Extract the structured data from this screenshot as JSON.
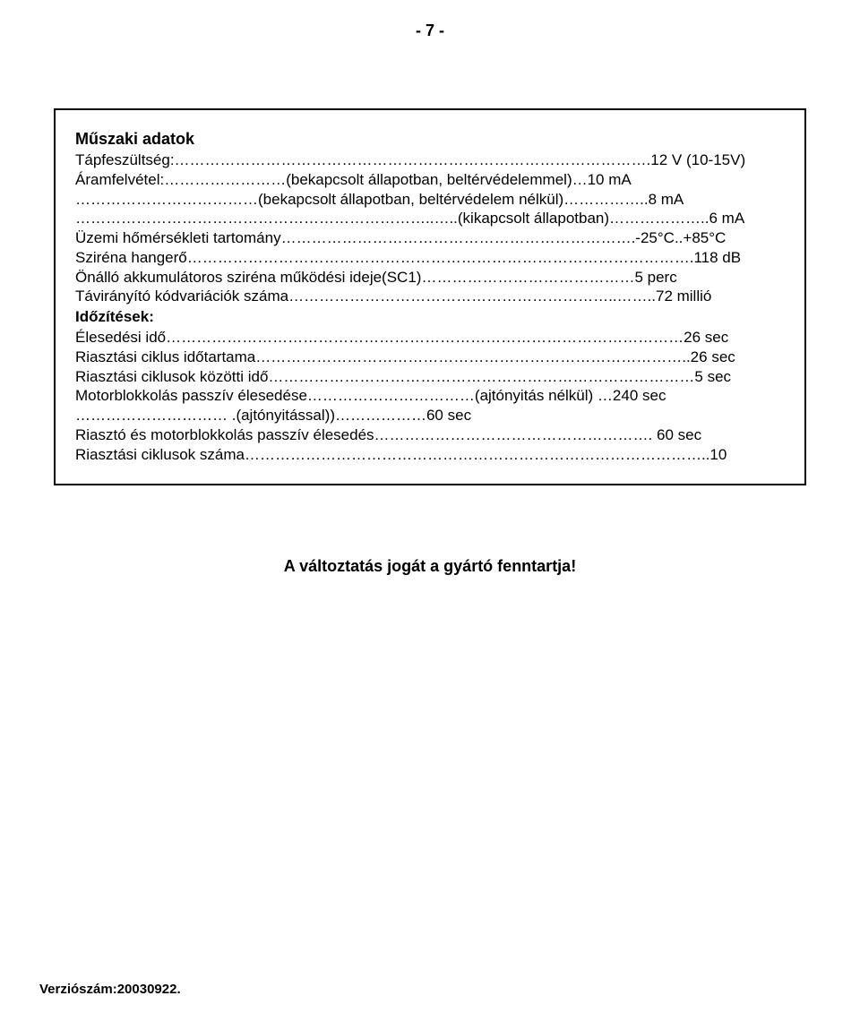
{
  "page_number": "- 7 -",
  "box": {
    "title": "Műszaki adatok",
    "lines": [
      "Tápfeszültség:………………………………………………………………………………….12 V (10-15V)",
      "Áramfelvétel:……………………(bekapcsolt állapotban, beltérvédelemmel)…10 mA",
      "………………………………(bekapcsolt állapotban, beltérvédelem nélkül)……………..8 mA",
      "……………………………………………………………..…..(kikapcsolt állapotban)………………..6 mA",
      "Üzemi hőmérsékleti tartomány…………………………………………………………….-25°C..+85°C",
      "Sziréna hangerő……………………………………………………………………………………….118 dB",
      "Önálló akkumulátoros sziréna működési ideje(SC1)……………………………………5 perc",
      "Távirányító kódvariációk száma………………………………………………………..……..72 millió"
    ],
    "sub_title": "Időzítések:",
    "lines2": [
      "Élesedési idő…………………………………………………………………………………………26 sec",
      "Riasztási ciklus időtartama…………………………………………………………………………..26 sec",
      "Riasztási ciklusok közötti idő…………………………………………………………………………5 sec",
      "Motorblokkolás passzív élesedése……………………………(ajtónyitás nélkül)  …240 sec",
      "…………………………  .(ajtónyitással))………………60 sec",
      "Riasztó és motorblokkolás passzív élesedés………………………………………………. 60 sec",
      "Riasztási ciklusok száma………………………………………………………………………………..10"
    ]
  },
  "footer_note": "A változtatás jogát a gyártó fenntartja!",
  "version_label": "Verziószám:20030922."
}
